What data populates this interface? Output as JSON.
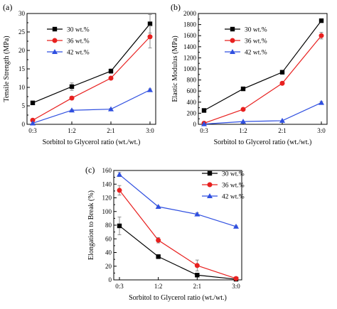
{
  "colors": {
    "black": "#000000",
    "red": "#e8201f",
    "blue": "#2f4fe0",
    "axis": "#000000"
  },
  "chart_data": [
    {
      "type": "line",
      "panel": "(a)",
      "xlabel": "Sorbitol to Glycerol ratio (wt./wt.)",
      "ylabel": "Tensile Strength (MPa)",
      "categories": [
        "0:3",
        "1:2",
        "2:1",
        "3:0"
      ],
      "ylim": [
        0,
        30
      ],
      "yticks": [
        0,
        5,
        10,
        15,
        20,
        25,
        30
      ],
      "legend_position": "top-left",
      "series": [
        {
          "name": "30 wt.%",
          "color": "#000000",
          "marker": "square",
          "values": [
            5.8,
            10.2,
            14.4,
            27.2
          ],
          "errors": [
            0,
            1.0,
            0.6,
            2.5
          ]
        },
        {
          "name": "36 wt.%",
          "color": "#e8201f",
          "marker": "circle",
          "values": [
            1.1,
            7.1,
            12.5,
            23.7
          ],
          "errors": [
            0,
            0.5,
            0.3,
            3.0
          ]
        },
        {
          "name": "42 wt.%",
          "color": "#2f4fe0",
          "marker": "triangle",
          "values": [
            0.3,
            3.8,
            4.1,
            9.3
          ],
          "errors": [
            0,
            0.2,
            0.2,
            0.3
          ]
        }
      ]
    },
    {
      "type": "line",
      "panel": "(b)",
      "xlabel": "Sorbitol to Glycerol ratio (wt./wt.)",
      "ylabel": "Elastic Modulus (MPa)",
      "categories": [
        "0:3",
        "1:2",
        "2:1",
        "3:0"
      ],
      "ylim": [
        0,
        2000
      ],
      "yticks": [
        0,
        200,
        400,
        600,
        800,
        1000,
        1200,
        1400,
        1600,
        1800,
        2000
      ],
      "legend_position": "top-left",
      "series": [
        {
          "name": "30 wt.%",
          "color": "#000000",
          "marker": "square",
          "values": [
            250,
            640,
            940,
            1870
          ],
          "errors": [
            0,
            0,
            15,
            30
          ]
        },
        {
          "name": "36 wt.%",
          "color": "#e8201f",
          "marker": "circle",
          "values": [
            20,
            270,
            740,
            1600
          ],
          "errors": [
            0,
            0,
            0,
            60
          ]
        },
        {
          "name": "42 wt.%",
          "color": "#2f4fe0",
          "marker": "triangle",
          "values": [
            5,
            50,
            65,
            390
          ],
          "errors": [
            0,
            0,
            0,
            20
          ]
        }
      ]
    },
    {
      "type": "line",
      "panel": "(c)",
      "xlabel": "Sorbitol to Glycerol ratio (wt./wt.)",
      "ylabel": "Elongation to Break (%)",
      "categories": [
        "0:3",
        "1:2",
        "2:1",
        "3:0"
      ],
      "ylim": [
        0,
        160
      ],
      "yticks": [
        0,
        20,
        40,
        60,
        80,
        100,
        120,
        140,
        160
      ],
      "legend_position": "top-right",
      "series": [
        {
          "name": "30 wt.%",
          "color": "#000000",
          "marker": "square",
          "values": [
            79,
            34,
            7,
            1
          ],
          "errors": [
            13,
            3,
            2,
            0
          ]
        },
        {
          "name": "36 wt.%",
          "color": "#e8201f",
          "marker": "circle",
          "values": [
            131,
            58,
            21,
            2
          ],
          "errors": [
            7,
            4,
            8,
            0
          ]
        },
        {
          "name": "42 wt.%",
          "color": "#2f4fe0",
          "marker": "triangle",
          "values": [
            154,
            107,
            96,
            78
          ],
          "errors": [
            3,
            1,
            2,
            1
          ]
        }
      ]
    }
  ]
}
